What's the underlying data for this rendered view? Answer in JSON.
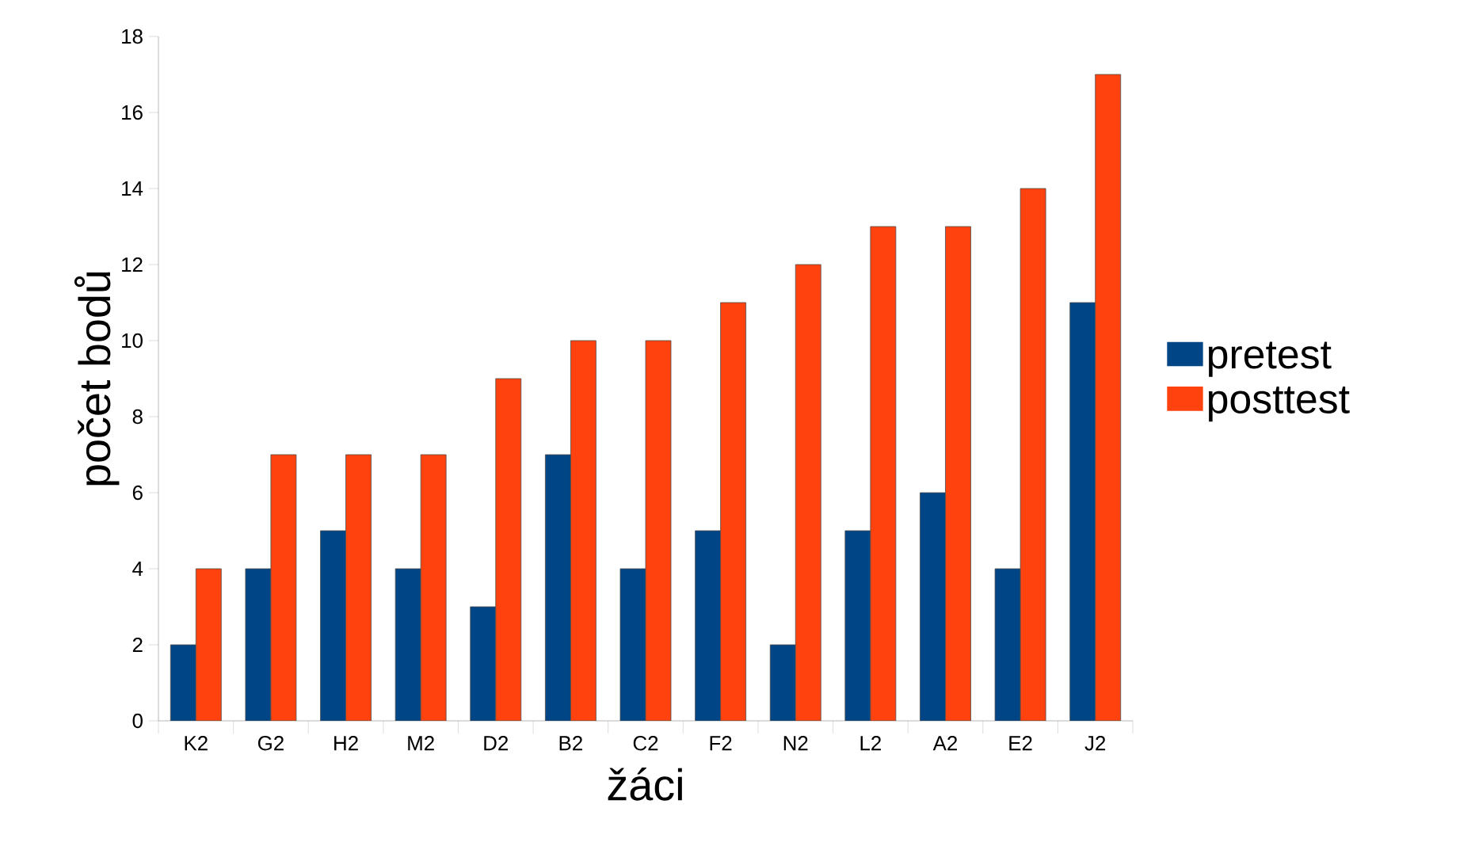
{
  "chart_data": {
    "type": "bar",
    "xlabel": "žáci",
    "ylabel": "počet bodů",
    "categories": [
      "K2",
      "G2",
      "H2",
      "M2",
      "D2",
      "B2",
      "C2",
      "F2",
      "N2",
      "L2",
      "A2",
      "E2",
      "J2"
    ],
    "series": [
      {
        "name": "pretest",
        "color": "#004586",
        "values": [
          2,
          4,
          5,
          4,
          3,
          7,
          4,
          5,
          2,
          5,
          6,
          4,
          11
        ]
      },
      {
        "name": "posttest",
        "color": "#ff420e",
        "values": [
          4,
          7,
          7,
          7,
          9,
          10,
          10,
          11,
          12,
          13,
          13,
          14,
          17
        ]
      }
    ],
    "ylim": [
      0,
      18
    ],
    "yticks": [
      0,
      2,
      4,
      6,
      8,
      10,
      12,
      14,
      16,
      18
    ],
    "grid": false,
    "legend": "right"
  }
}
